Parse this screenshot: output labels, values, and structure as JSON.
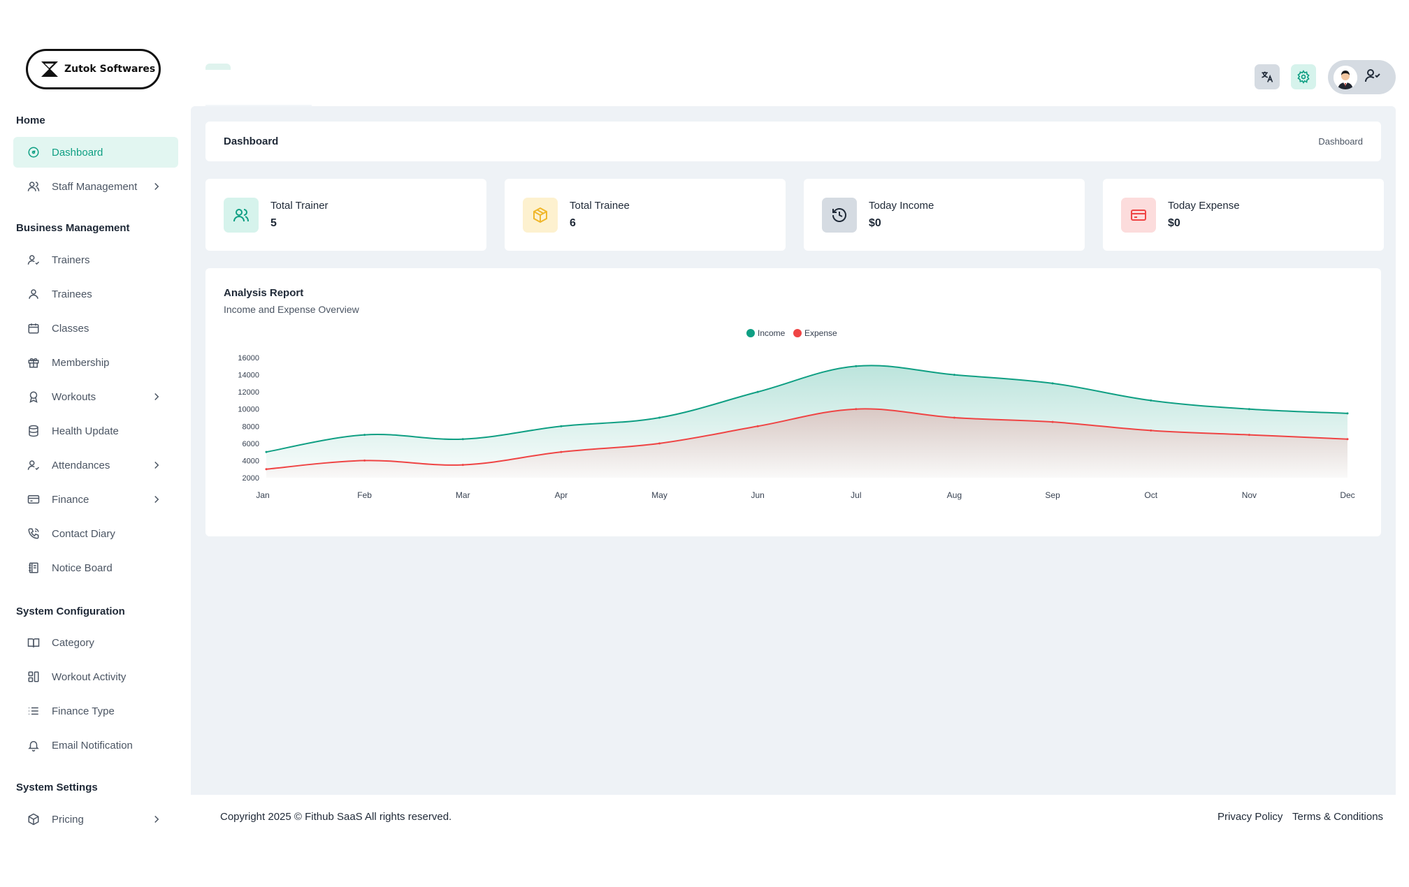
{
  "brand": {
    "name": "Zutok Softwares"
  },
  "sidebar": {
    "sections": [
      {
        "title": "Home"
      },
      {
        "title": "Business Management"
      },
      {
        "title": "System Configuration"
      },
      {
        "title": "System Settings"
      }
    ],
    "items": [
      {
        "label": "Dashboard",
        "icon": "dashboard-icon"
      },
      {
        "label": "Staff Management",
        "icon": "users-icon"
      },
      {
        "label": "Trainers",
        "icon": "user-check-icon"
      },
      {
        "label": "Trainees",
        "icon": "user-icon"
      },
      {
        "label": "Classes",
        "icon": "calendar-icon"
      },
      {
        "label": "Membership",
        "icon": "gift-icon"
      },
      {
        "label": "Workouts",
        "icon": "award-icon"
      },
      {
        "label": "Health Update",
        "icon": "database-icon"
      },
      {
        "label": "Attendances",
        "icon": "user-check-icon"
      },
      {
        "label": "Finance",
        "icon": "credit-card-icon"
      },
      {
        "label": "Contact Diary",
        "icon": "phone-icon"
      },
      {
        "label": "Notice Board",
        "icon": "notebook-icon"
      },
      {
        "label": "Category",
        "icon": "book-open-icon"
      },
      {
        "label": "Workout Activity",
        "icon": "activity-grid-icon"
      },
      {
        "label": "Finance Type",
        "icon": "list-icon"
      },
      {
        "label": "Email Notification",
        "icon": "bell-icon"
      },
      {
        "label": "Pricing",
        "icon": "package-icon"
      }
    ]
  },
  "header": {
    "icons": [
      "translate-icon",
      "settings-icon",
      "user-check-icon"
    ],
    "colors": {
      "accent": "#0f9f83",
      "lang_bg": "#d5dbe2",
      "settings_bg": "#d6f3ec"
    }
  },
  "breadcrumb": {
    "title": "Dashboard",
    "crumb": "Dashboard"
  },
  "stats": [
    {
      "label": "Total Trainer",
      "value": "5",
      "icon": "users-icon",
      "bg": "#d6f3ec",
      "fg": "#0f9f83"
    },
    {
      "label": "Total Trainee",
      "value": "6",
      "icon": "box-icon",
      "bg": "#fdf1cf",
      "fg": "#f0b72b"
    },
    {
      "label": "Today Income",
      "value": "$0",
      "icon": "history-icon",
      "bg": "#d5dbe2",
      "fg": "#1f2937"
    },
    {
      "label": "Today Expense",
      "value": "$0",
      "icon": "credit-card-icon",
      "bg": "#fcdcdc",
      "fg": "#ef4444"
    }
  ],
  "chart": {
    "title": "Analysis Report",
    "subtitle": "Income and Expense Overview"
  },
  "chart_data": {
    "type": "area",
    "categories": [
      "Jan",
      "Feb",
      "Mar",
      "Apr",
      "May",
      "Jun",
      "Jul",
      "Aug",
      "Sep",
      "Oct",
      "Nov",
      "Dec"
    ],
    "series": [
      {
        "name": "Income",
        "color": "#0f9f83",
        "values": [
          5000,
          7000,
          6500,
          8000,
          9000,
          12000,
          15000,
          14000,
          13000,
          11000,
          10000,
          9500
        ]
      },
      {
        "name": "Expense",
        "color": "#ef4444",
        "values": [
          3000,
          4000,
          3500,
          5000,
          6000,
          8000,
          10000,
          9000,
          8500,
          7500,
          7000,
          6500
        ]
      }
    ],
    "ylim": [
      2000,
      16000
    ],
    "yticks": [
      2000,
      4000,
      6000,
      8000,
      10000,
      12000,
      14000,
      16000
    ],
    "legend": "top-center",
    "grid": false
  },
  "footer": {
    "copyright": "Copyright 2025 © Fithub SaaS All rights reserved.",
    "links": [
      "Privacy Policy",
      "Terms & Conditions"
    ]
  }
}
